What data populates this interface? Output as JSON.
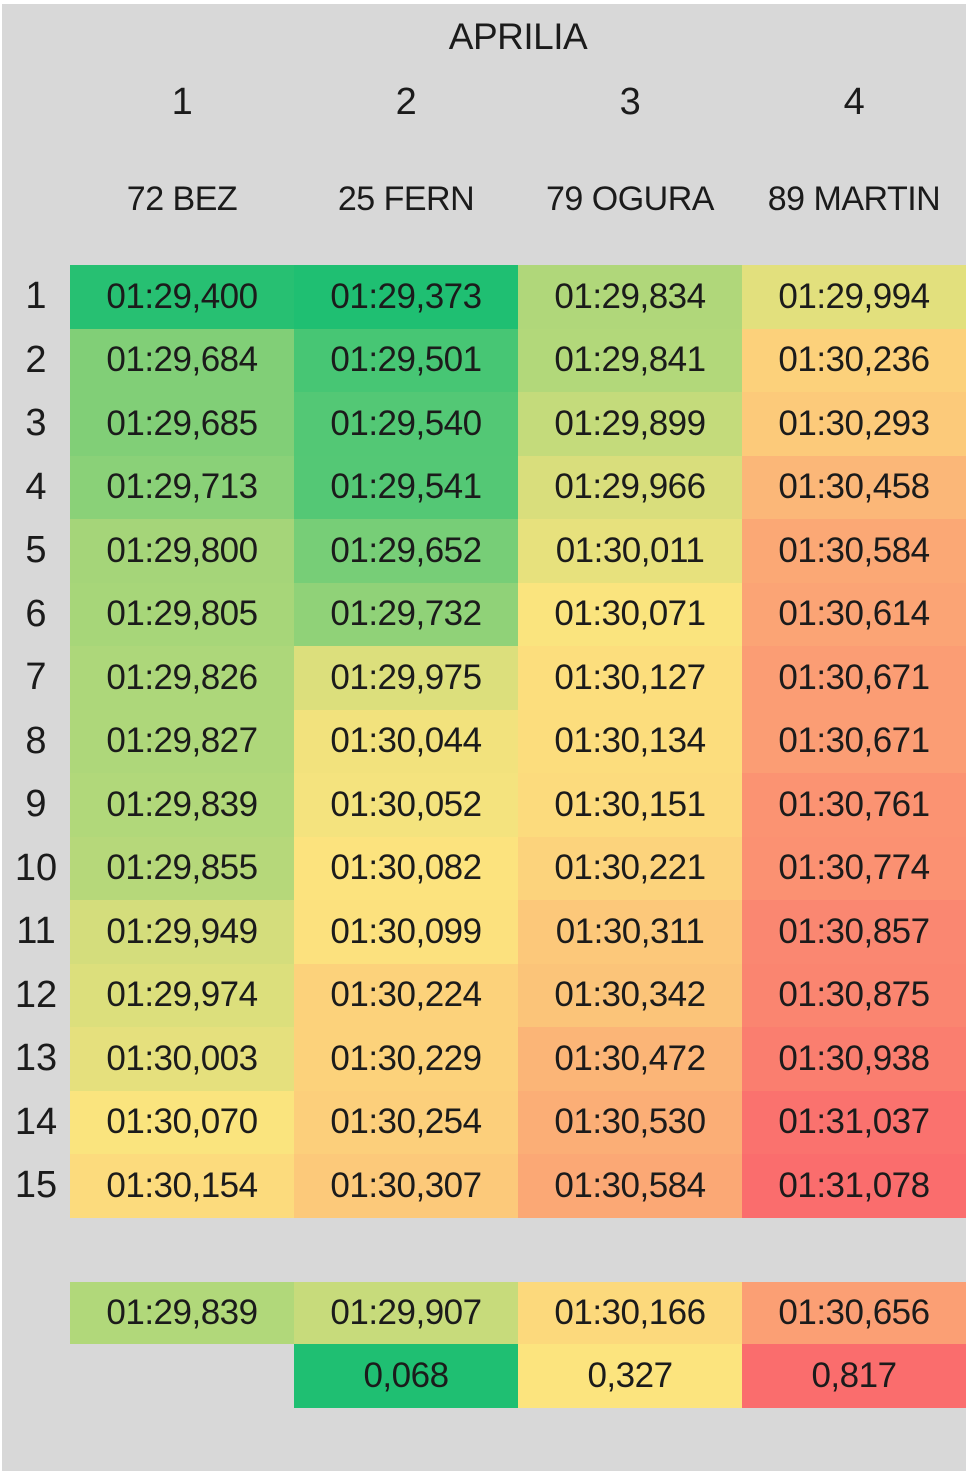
{
  "title": "APRILIA",
  "column_headers": {
    "numbers": [
      "1",
      "2",
      "3",
      "4"
    ],
    "riders": [
      "72 BEZ",
      "25 FERN",
      "79 OGURA",
      "89 MARTIN"
    ]
  },
  "lap_rows": [
    {
      "lap": "1",
      "times": [
        "01:29,400",
        "01:29,373",
        "01:29,834",
        "01:29,994"
      ]
    },
    {
      "lap": "2",
      "times": [
        "01:29,684",
        "01:29,501",
        "01:29,841",
        "01:30,236"
      ]
    },
    {
      "lap": "3",
      "times": [
        "01:29,685",
        "01:29,540",
        "01:29,899",
        "01:30,293"
      ]
    },
    {
      "lap": "4",
      "times": [
        "01:29,713",
        "01:29,541",
        "01:29,966",
        "01:30,458"
      ]
    },
    {
      "lap": "5",
      "times": [
        "01:29,800",
        "01:29,652",
        "01:30,011",
        "01:30,584"
      ]
    },
    {
      "lap": "6",
      "times": [
        "01:29,805",
        "01:29,732",
        "01:30,071",
        "01:30,614"
      ]
    },
    {
      "lap": "7",
      "times": [
        "01:29,826",
        "01:29,975",
        "01:30,127",
        "01:30,671"
      ]
    },
    {
      "lap": "8",
      "times": [
        "01:29,827",
        "01:30,044",
        "01:30,134",
        "01:30,671"
      ]
    },
    {
      "lap": "9",
      "times": [
        "01:29,839",
        "01:30,052",
        "01:30,151",
        "01:30,761"
      ]
    },
    {
      "lap": "10",
      "times": [
        "01:29,855",
        "01:30,082",
        "01:30,221",
        "01:30,774"
      ]
    },
    {
      "lap": "11",
      "times": [
        "01:29,949",
        "01:30,099",
        "01:30,311",
        "01:30,857"
      ]
    },
    {
      "lap": "12",
      "times": [
        "01:29,974",
        "01:30,224",
        "01:30,342",
        "01:30,875"
      ]
    },
    {
      "lap": "13",
      "times": [
        "01:30,003",
        "01:30,229",
        "01:30,472",
        "01:30,938"
      ]
    },
    {
      "lap": "14",
      "times": [
        "01:30,070",
        "01:30,254",
        "01:30,530",
        "01:31,037"
      ]
    },
    {
      "lap": "15",
      "times": [
        "01:30,154",
        "01:30,307",
        "01:30,584",
        "01:31,078"
      ]
    }
  ],
  "summary": {
    "averages": [
      "01:29,839",
      "01:29,907",
      "01:30,166",
      "01:30,656"
    ],
    "gaps": [
      "",
      "0,068",
      "0,327",
      "0,817"
    ]
  },
  "colors": {
    "background": "#d8d8d8",
    "page_border": "#ffffff",
    "text": "#1b1b1b",
    "scale_green": "#1fbf72",
    "scale_yellow": "#fce47e",
    "scale_red": "#fa6d6d"
  },
  "chart_data": {
    "type": "heatmap",
    "title": "APRILIA",
    "columns": [
      "72 BEZ",
      "25 FERN",
      "79 OGURA",
      "89 MARTIN"
    ],
    "column_positions": [
      1,
      2,
      3,
      4
    ],
    "row_label": "lap",
    "row_labels": [
      1,
      2,
      3,
      4,
      5,
      6,
      7,
      8,
      9,
      10,
      11,
      12,
      13,
      14,
      15
    ],
    "values_seconds": [
      [
        89.4,
        89.373,
        89.834,
        89.994
      ],
      [
        89.684,
        89.501,
        89.841,
        90.236
      ],
      [
        89.685,
        89.54,
        89.899,
        90.293
      ],
      [
        89.713,
        89.541,
        89.966,
        90.458
      ],
      [
        89.8,
        89.652,
        90.011,
        90.584
      ],
      [
        89.805,
        89.732,
        90.071,
        90.614
      ],
      [
        89.826,
        89.975,
        90.127,
        90.671
      ],
      [
        89.827,
        90.044,
        90.134,
        90.671
      ],
      [
        89.839,
        90.052,
        90.151,
        90.761
      ],
      [
        89.855,
        90.082,
        90.221,
        90.774
      ],
      [
        89.949,
        90.099,
        90.311,
        90.857
      ],
      [
        89.974,
        90.224,
        90.342,
        90.875
      ],
      [
        90.003,
        90.229,
        90.472,
        90.938
      ],
      [
        90.07,
        90.254,
        90.53,
        91.037
      ],
      [
        90.154,
        90.307,
        90.584,
        91.078
      ]
    ],
    "average_seconds": [
      89.839,
      89.907,
      90.166,
      90.656
    ],
    "gap_to_best_seconds": [
      null,
      0.068,
      0.327,
      0.817
    ],
    "color_scale": {
      "min": 89.373,
      "mid": 90.0765,
      "max": 91.078,
      "min_color": "#1fbf72",
      "mid_color": "#fce47e",
      "max_color": "#fa6d6d"
    },
    "gap_color_scale": {
      "min": 0.068,
      "mid": 0.327,
      "max": 0.817,
      "min_color": "#1fbf72",
      "mid_color": "#fce47e",
      "max_color": "#fa6d6d"
    },
    "legend": "cell color encodes lap time: green = fastest, yellow = median, red = slowest",
    "grid": false
  }
}
